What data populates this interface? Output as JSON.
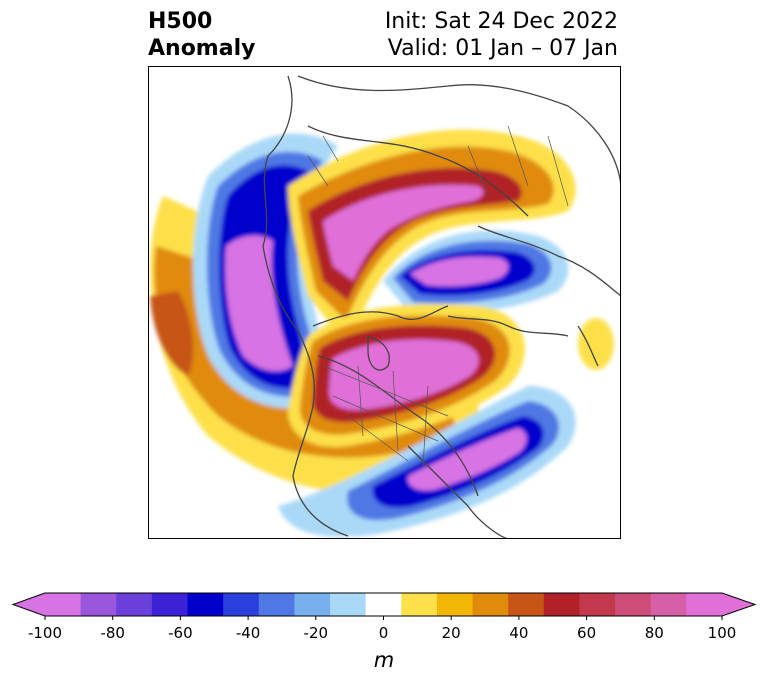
{
  "title": {
    "field": "H500",
    "quantity": "Anomaly",
    "init": "Init: Sat 24 Dec 2022",
    "valid": "Valid: 01 Jan – 07 Jan"
  },
  "colorbar": {
    "unit": "m",
    "ticks": [
      "-100",
      "-80",
      "-60",
      "-40",
      "-20",
      "0",
      "20",
      "40",
      "60",
      "80",
      "100"
    ],
    "levels": [
      -100,
      -90,
      -80,
      -70,
      -60,
      -50,
      -40,
      -30,
      -20,
      -10,
      10,
      20,
      30,
      40,
      50,
      60,
      70,
      80,
      90,
      100
    ],
    "colors": [
      "#d773e4",
      "#9c56dc",
      "#6b3fd9",
      "#3b22d6",
      "#0000cc",
      "#2a3fdc",
      "#5078e4",
      "#78b0ef",
      "#aad9f8",
      "#ffffff",
      "#fde04a",
      "#f2b705",
      "#e08b0c",
      "#c65516",
      "#b02228",
      "#c2384c",
      "#cc4e78",
      "#d560a8",
      "#e070d8"
    ],
    "extend_low_color": "#d773e4",
    "extend_high_color": "#e070d8"
  },
  "map": {
    "projection": "north-polar-stereographic",
    "region": "Northern Hemisphere",
    "colors": {
      "neg_deep": "#d773e4",
      "neg_blue": "#0000cc",
      "neg_mid": "#5078e4",
      "neg_light": "#aad9f8",
      "pos_light": "#fde04a",
      "pos_orange": "#e08b0c",
      "pos_red": "#b02228",
      "pos_deep": "#e070d8",
      "coast": "#444444"
    }
  }
}
